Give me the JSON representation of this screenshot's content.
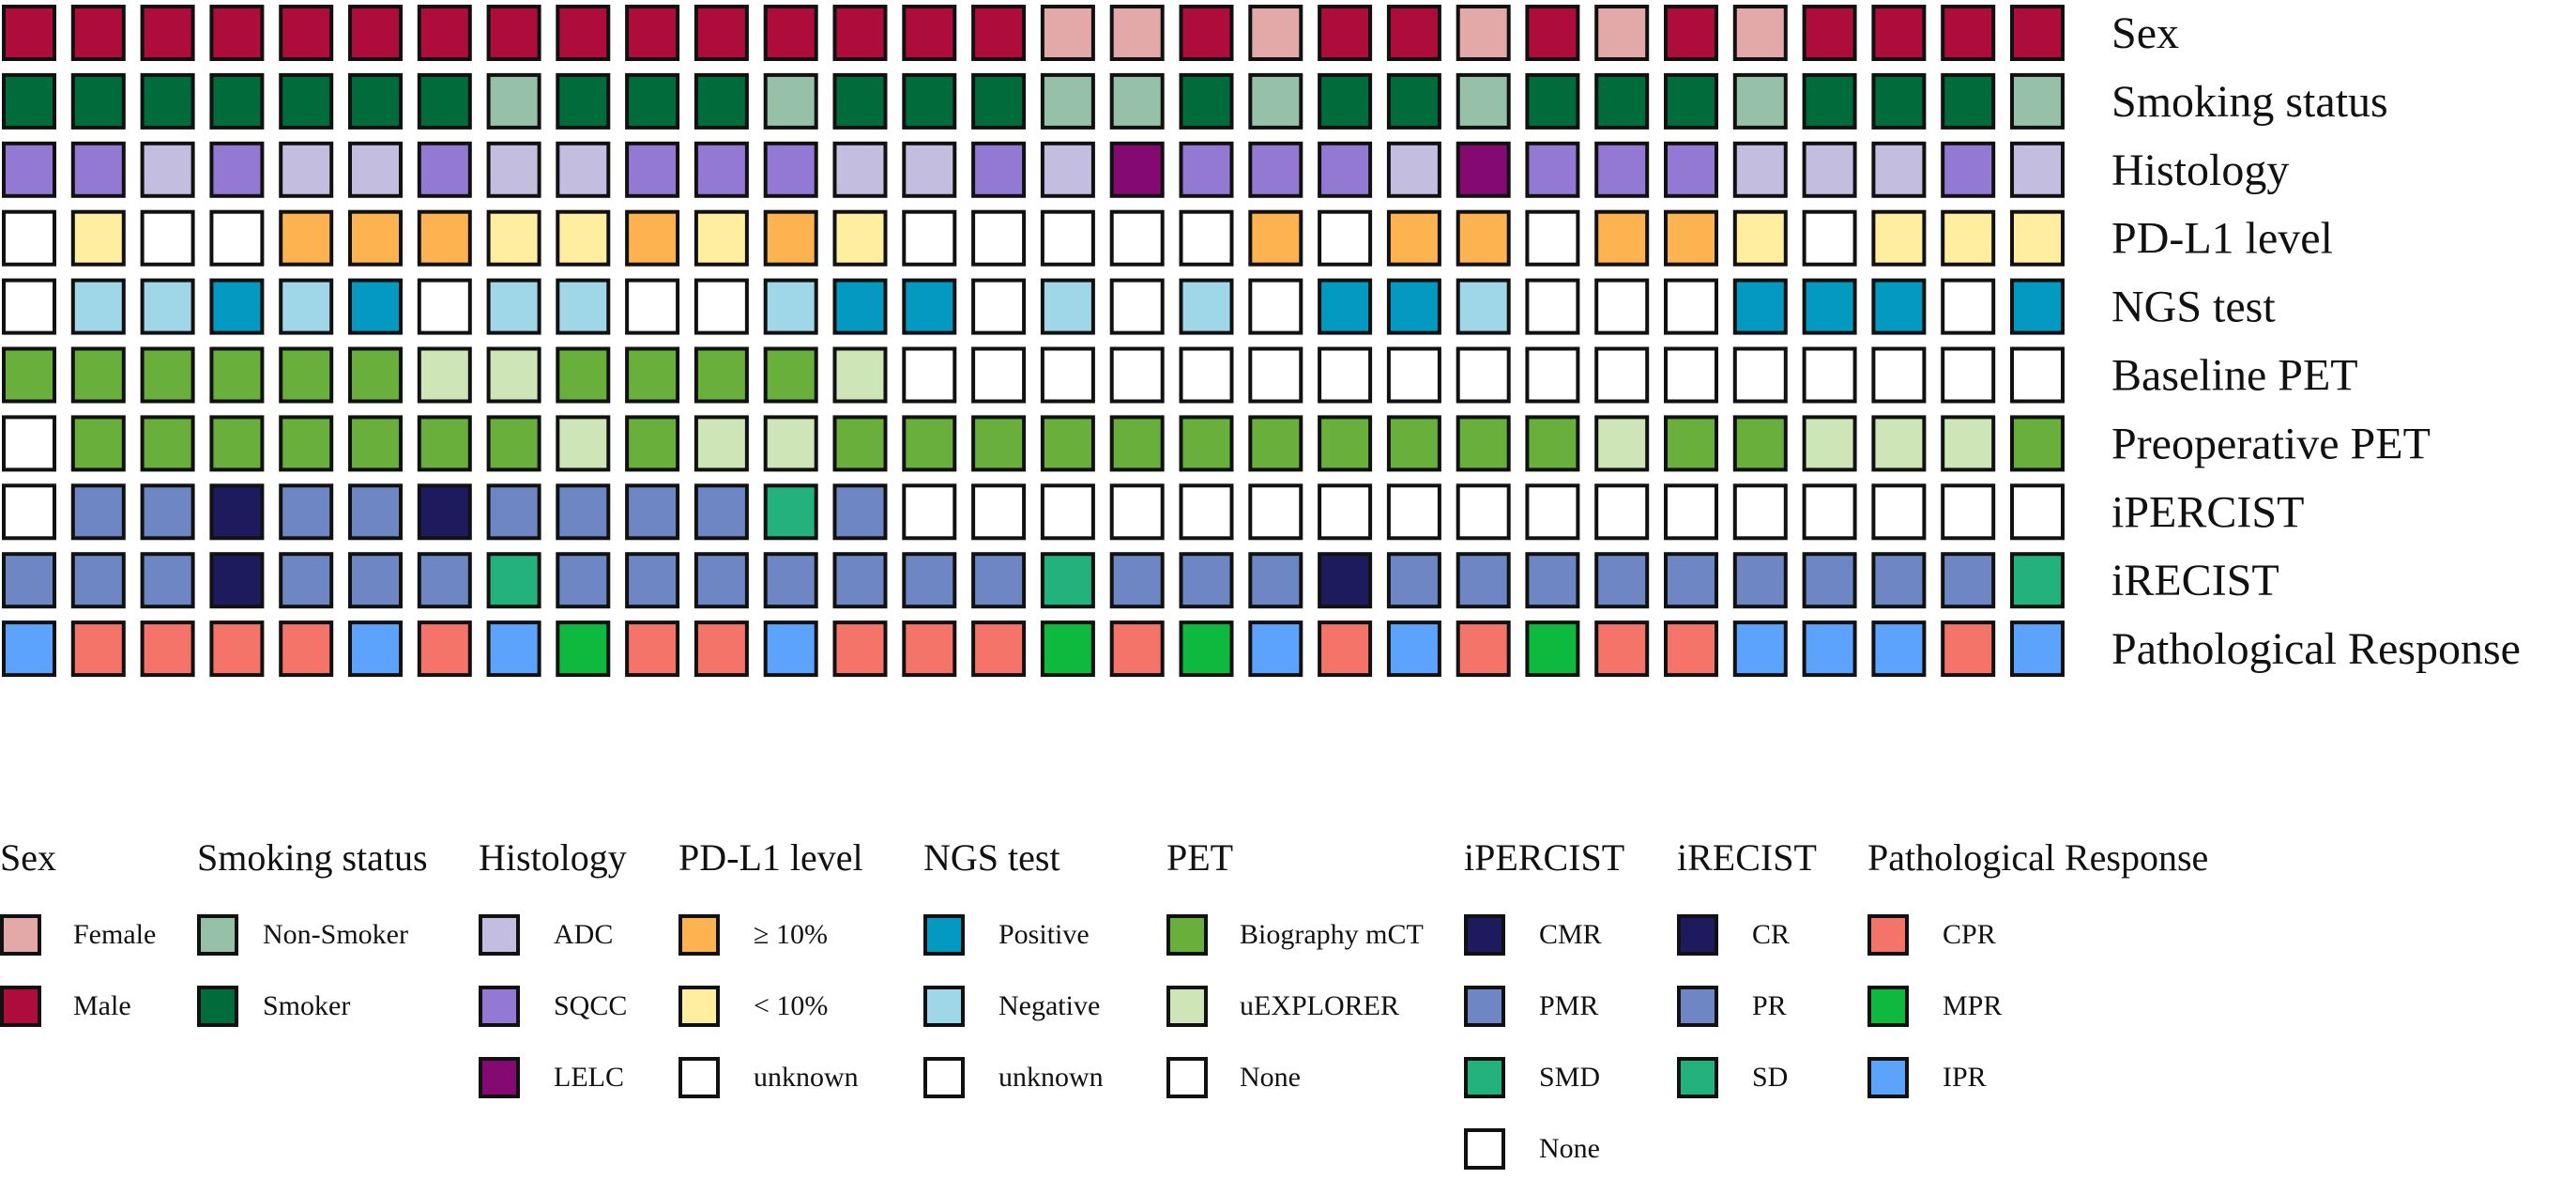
{
  "chart_data": {
    "type": "heatmap",
    "rows": [
      {
        "label": "Sex",
        "cells": [
          "Male",
          "Male",
          "Male",
          "Male",
          "Male",
          "Male",
          "Male",
          "Male",
          "Male",
          "Male",
          "Male",
          "Male",
          "Male",
          "Male",
          "Male",
          "Female",
          "Female",
          "Male",
          "Female",
          "Male",
          "Male",
          "Female",
          "Male",
          "Female",
          "Male",
          "Female",
          "Male",
          "Male",
          "Male",
          "Male"
        ]
      },
      {
        "label": "Smoking status",
        "cells": [
          "Smoker",
          "Smoker",
          "Smoker",
          "Smoker",
          "Smoker",
          "Smoker",
          "Smoker",
          "Non-Smoker",
          "Smoker",
          "Smoker",
          "Smoker",
          "Non-Smoker",
          "Smoker",
          "Smoker",
          "Smoker",
          "Non-Smoker",
          "Non-Smoker",
          "Smoker",
          "Non-Smoker",
          "Smoker",
          "Smoker",
          "Non-Smoker",
          "Smoker",
          "Smoker",
          "Smoker",
          "Non-Smoker",
          "Smoker",
          "Smoker",
          "Smoker",
          "Non-Smoker"
        ]
      },
      {
        "label": "Histology",
        "cells": [
          "SQCC",
          "SQCC",
          "ADC",
          "SQCC",
          "ADC",
          "ADC",
          "SQCC",
          "ADC",
          "ADC",
          "SQCC",
          "SQCC",
          "SQCC",
          "ADC",
          "ADC",
          "SQCC",
          "ADC",
          "LELC",
          "SQCC",
          "SQCC",
          "SQCC",
          "ADC",
          "LELC",
          "SQCC",
          "SQCC",
          "SQCC",
          "ADC",
          "ADC",
          "ADC",
          "SQCC",
          "ADC"
        ]
      },
      {
        "label": "PD-L1 level",
        "cells": [
          "unknown",
          "< 10%",
          "unknown",
          "unknown",
          "≥ 10%",
          "≥ 10%",
          "≥ 10%",
          "< 10%",
          "< 10%",
          "≥ 10%",
          "< 10%",
          "≥ 10%",
          "< 10%",
          "unknown",
          "unknown",
          "unknown",
          "unknown",
          "unknown",
          "≥ 10%",
          "unknown",
          "≥ 10%",
          "≥ 10%",
          "unknown",
          "≥ 10%",
          "≥ 10%",
          "< 10%",
          "unknown",
          "< 10%",
          "< 10%",
          "< 10%"
        ]
      },
      {
        "label": "NGS test",
        "cells": [
          "unknown",
          "Negative",
          "Negative",
          "Positive",
          "Negative",
          "Positive",
          "unknown",
          "Negative",
          "Negative",
          "unknown",
          "unknown",
          "Negative",
          "Positive",
          "Positive",
          "unknown",
          "Negative",
          "unknown",
          "Negative",
          "unknown",
          "Positive",
          "Positive",
          "Negative",
          "unknown",
          "unknown",
          "unknown",
          "Positive",
          "Positive",
          "Positive",
          "unknown",
          "Positive"
        ]
      },
      {
        "label": "Baseline PET",
        "cells": [
          "Biography mCT",
          "Biography mCT",
          "Biography mCT",
          "Biography mCT",
          "Biography mCT",
          "Biography mCT",
          "uEXPLORER",
          "uEXPLORER",
          "Biography mCT",
          "Biography mCT",
          "Biography mCT",
          "Biography mCT",
          "uEXPLORER",
          "None",
          "None",
          "None",
          "None",
          "None",
          "None",
          "None",
          "None",
          "None",
          "None",
          "None",
          "None",
          "None",
          "None",
          "None",
          "None",
          "None"
        ]
      },
      {
        "label": "Preoperative PET",
        "cells": [
          "None",
          "Biography mCT",
          "Biography mCT",
          "Biography mCT",
          "Biography mCT",
          "Biography mCT",
          "Biography mCT",
          "Biography mCT",
          "uEXPLORER",
          "Biography mCT",
          "uEXPLORER",
          "uEXPLORER",
          "Biography mCT",
          "Biography mCT",
          "Biography mCT",
          "Biography mCT",
          "Biography mCT",
          "Biography mCT",
          "Biography mCT",
          "Biography mCT",
          "Biography mCT",
          "Biography mCT",
          "Biography mCT",
          "uEXPLORER",
          "Biography mCT",
          "Biography mCT",
          "uEXPLORER",
          "uEXPLORER",
          "uEXPLORER",
          "Biography mCT"
        ]
      },
      {
        "label": "iPERCIST",
        "cells": [
          "None",
          "PMR",
          "PMR",
          "CMR",
          "PMR",
          "PMR",
          "CMR",
          "PMR",
          "PMR",
          "PMR",
          "PMR",
          "SMD",
          "PMR",
          "None",
          "None",
          "None",
          "None",
          "None",
          "None",
          "None",
          "None",
          "None",
          "None",
          "None",
          "None",
          "None",
          "None",
          "None",
          "None",
          "None"
        ]
      },
      {
        "label": "iRECIST",
        "cells": [
          "PR",
          "PR",
          "PR",
          "CR",
          "PR",
          "PR",
          "PR",
          "SD",
          "PR",
          "PR",
          "PR",
          "PR",
          "PR",
          "PR",
          "PR",
          "SD",
          "PR",
          "PR",
          "PR",
          "CR",
          "PR",
          "PR",
          "PR",
          "PR",
          "PR",
          "PR",
          "PR",
          "PR",
          "PR",
          "SD"
        ]
      },
      {
        "label": "Pathological Response",
        "cells": [
          "IPR",
          "CPR",
          "CPR",
          "CPR",
          "CPR",
          "IPR",
          "CPR",
          "IPR",
          "MPR",
          "CPR",
          "CPR",
          "IPR",
          "CPR",
          "CPR",
          "CPR",
          "MPR",
          "CPR",
          "MPR",
          "IPR",
          "CPR",
          "IPR",
          "CPR",
          "MPR",
          "CPR",
          "CPR",
          "IPR",
          "IPR",
          "IPR",
          "CPR",
          "IPR"
        ]
      }
    ],
    "legend": [
      {
        "title": "Sex",
        "items": [
          {
            "label": "Female",
            "color": "#E3A8A8"
          },
          {
            "label": "Male",
            "color": "#AE0C3A"
          }
        ]
      },
      {
        "title": "Smoking status",
        "items": [
          {
            "label": "Non-Smoker",
            "color": "#96C0A7"
          },
          {
            "label": "Smoker",
            "color": "#006C3B"
          }
        ]
      },
      {
        "title": "Histology",
        "items": [
          {
            "label": "ADC",
            "color": "#C3BDE0"
          },
          {
            "label": "SQCC",
            "color": "#9479D4"
          },
          {
            "label": "LELC",
            "color": "#840A72"
          }
        ]
      },
      {
        "title": "PD-L1 level",
        "items": [
          {
            "label": "≥ 10%",
            "color": "#FDB34F"
          },
          {
            "label": "< 10%",
            "color": "#FFEE9F"
          },
          {
            "label": "unknown",
            "color": "#FFFFFF"
          }
        ]
      },
      {
        "title": "NGS test",
        "items": [
          {
            "label": "Positive",
            "color": "#0499C0"
          },
          {
            "label": "Negative",
            "color": "#9FD6E8"
          },
          {
            "label": "unknown",
            "color": "#FFFFFF"
          }
        ]
      },
      {
        "title": "PET",
        "items": [
          {
            "label": "Biography mCT",
            "color": "#69AF3B"
          },
          {
            "label": "uEXPLORER",
            "color": "#CDE5B7"
          },
          {
            "label": "None",
            "color": "#FFFFFF"
          }
        ]
      },
      {
        "title": "iPERCIST",
        "items": [
          {
            "label": "CMR",
            "color": "#1D1B5D"
          },
          {
            "label": "PMR",
            "color": "#6E87C4"
          },
          {
            "label": "SMD",
            "color": "#23B17E"
          },
          {
            "label": "None",
            "color": "#FFFFFF"
          }
        ]
      },
      {
        "title": "iRECIST",
        "items": [
          {
            "label": "CR",
            "color": "#1D1B5D"
          },
          {
            "label": "PR",
            "color": "#6E87C4"
          },
          {
            "label": "SD",
            "color": "#23B17E"
          }
        ]
      },
      {
        "title": "Pathological Response",
        "items": [
          {
            "label": "CPR",
            "color": "#F4746A"
          },
          {
            "label": "MPR",
            "color": "#0DBA3E"
          },
          {
            "label": "IPR",
            "color": "#5BA3FD"
          }
        ]
      }
    ],
    "row_legend_map": {
      "Sex": "Sex",
      "Smoking status": "Smoking status",
      "Histology": "Histology",
      "PD-L1 level": "PD-L1 level",
      "NGS test": "NGS test",
      "Baseline PET": "PET",
      "Preoperative PET": "PET",
      "iPERCIST": "iPERCIST",
      "iRECIST": "iRECIST",
      "Pathological Response": "Pathological Response"
    }
  }
}
